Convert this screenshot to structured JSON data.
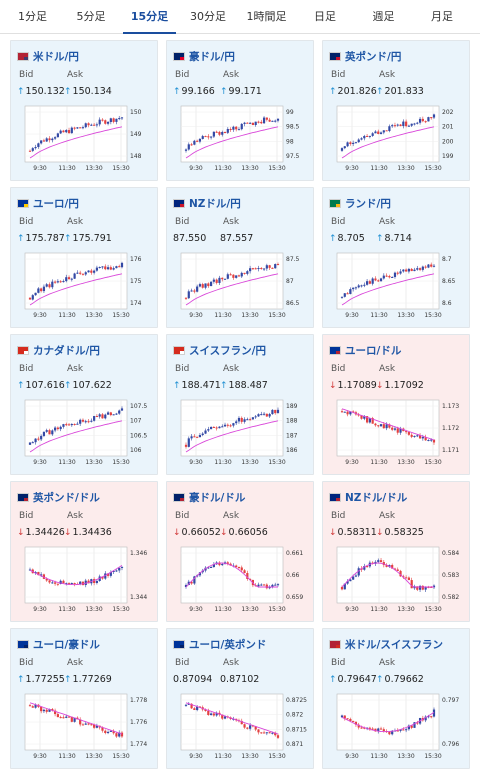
{
  "tabs": [
    "1分足",
    "5分足",
    "15分足",
    "30分足",
    "1時間足",
    "日足",
    "週足",
    "月足"
  ],
  "active_tab": 2,
  "labels": {
    "bid": "Bid",
    "ask": "Ask"
  },
  "x_ticks": [
    "9:30",
    "11:30",
    "13:30",
    "15:30"
  ],
  "colors": {
    "candle_up": "#3349a5",
    "candle_down": "#e34141",
    "line": "#d946d9",
    "line2": "#32b8b0",
    "card_up": "#eaf4fb",
    "card_down": "#fcecec",
    "title": "#1f56a5"
  },
  "cards": [
    {
      "name": "米ドル/円",
      "flag": [
        "#b22234",
        "#3c3b6e"
      ],
      "bid": "150.132",
      "ask": "150.134",
      "bid_dir": "up",
      "ask_dir": "up",
      "bg": "up",
      "ticks": [
        "150",
        "149",
        "148"
      ],
      "trend": "up"
    },
    {
      "name": "豪ドル/円",
      "flag": [
        "#012169",
        "#e4002b"
      ],
      "bid": "99.166",
      "ask": "99.171",
      "bid_dir": "up",
      "ask_dir": "up",
      "bg": "up",
      "ticks": [
        "99",
        "98.5",
        "98",
        "97.5"
      ],
      "trend": "up"
    },
    {
      "name": "英ポンド/円",
      "flag": [
        "#012169",
        "#c8102e"
      ],
      "bid": "201.826",
      "ask": "201.833",
      "bid_dir": "up",
      "ask_dir": "up",
      "bg": "up",
      "ticks": [
        "202",
        "201",
        "200",
        "199"
      ],
      "trend": "up"
    },
    {
      "name": "ユーロ/円",
      "flag": [
        "#003399",
        "#ffcc00"
      ],
      "bid": "175.787",
      "ask": "175.791",
      "bid_dir": "up",
      "ask_dir": "up",
      "bg": "up",
      "ticks": [
        "176",
        "175",
        "174"
      ],
      "trend": "up"
    },
    {
      "name": "NZドル/円",
      "flag": [
        "#00247d",
        "#cc142b"
      ],
      "bid": "87.550",
      "ask": "87.557",
      "bid_dir": "none",
      "ask_dir": "none",
      "bg": "up",
      "ticks": [
        "87.5",
        "87",
        "86.5"
      ],
      "trend": "up"
    },
    {
      "name": "ランド/円",
      "flag": [
        "#007a4d",
        "#ffb612"
      ],
      "bid": "8.705",
      "ask": "8.714",
      "bid_dir": "up",
      "ask_dir": "up",
      "bg": "up",
      "ticks": [
        "8.7",
        "8.65",
        "8.6"
      ],
      "trend": "up"
    },
    {
      "name": "カナダドル/円",
      "flag": [
        "#d52b1e",
        "#ffffff"
      ],
      "bid": "107.616",
      "ask": "107.622",
      "bid_dir": "up",
      "ask_dir": "up",
      "bg": "up",
      "ticks": [
        "107.5",
        "107",
        "106.5",
        "106"
      ],
      "trend": "up"
    },
    {
      "name": "スイスフラン/円",
      "flag": [
        "#d52b1e",
        "#ffffff"
      ],
      "bid": "188.471",
      "ask": "188.487",
      "bid_dir": "up",
      "ask_dir": "up",
      "bg": "up",
      "ticks": [
        "189",
        "188",
        "187",
        "186"
      ],
      "trend": "up"
    },
    {
      "name": "ユーロ/ドル",
      "flag": [
        "#003399",
        "#b22234"
      ],
      "bid": "1.17089",
      "ask": "1.17092",
      "bid_dir": "down",
      "ask_dir": "down",
      "bg": "down",
      "ticks": [
        "1.173",
        "1.172",
        "1.171"
      ],
      "trend": "down"
    },
    {
      "name": "英ポンド/ドル",
      "flag": [
        "#012169",
        "#b22234"
      ],
      "bid": "1.34426",
      "ask": "1.34436",
      "bid_dir": "down",
      "ask_dir": "down",
      "bg": "down",
      "ticks": [
        "1.346",
        "1.344"
      ],
      "trend": "dip"
    },
    {
      "name": "豪ドル/ドル",
      "flag": [
        "#012169",
        "#b22234"
      ],
      "bid": "0.66052",
      "ask": "0.66056",
      "bid_dir": "down",
      "ask_dir": "down",
      "bg": "down",
      "ticks": [
        "0.661",
        "0.66",
        "0.659"
      ],
      "trend": "hump"
    },
    {
      "name": "NZドル/ドル",
      "flag": [
        "#00247d",
        "#b22234"
      ],
      "bid": "0.58311",
      "ask": "0.58325",
      "bid_dir": "down",
      "ask_dir": "down",
      "bg": "down",
      "ticks": [
        "0.584",
        "0.583",
        "0.582"
      ],
      "trend": "hump"
    },
    {
      "name": "ユーロ/豪ドル",
      "flag": [
        "#003399",
        "#012169"
      ],
      "bid": "1.77255",
      "ask": "1.77269",
      "bid_dir": "up",
      "ask_dir": "up",
      "bg": "up",
      "ticks": [
        "1.778",
        "1.776",
        "1.774"
      ],
      "trend": "down"
    },
    {
      "name": "ユーロ/英ポンド",
      "flag": [
        "#003399",
        "#012169"
      ],
      "bid": "0.87094",
      "ask": "0.87102",
      "bid_dir": "none",
      "ask_dir": "none",
      "bg": "up",
      "ticks": [
        "0.8725",
        "0.872",
        "0.8715",
        "0.871"
      ],
      "trend": "down"
    },
    {
      "name": "米ドル/スイスフラン",
      "flag": [
        "#b22234",
        "#d52b1e"
      ],
      "bid": "0.79647",
      "ask": "0.79662",
      "bid_dir": "up",
      "ask_dir": "up",
      "bg": "up",
      "ticks": [
        "0.797",
        "0.796"
      ],
      "trend": "dip"
    }
  ]
}
